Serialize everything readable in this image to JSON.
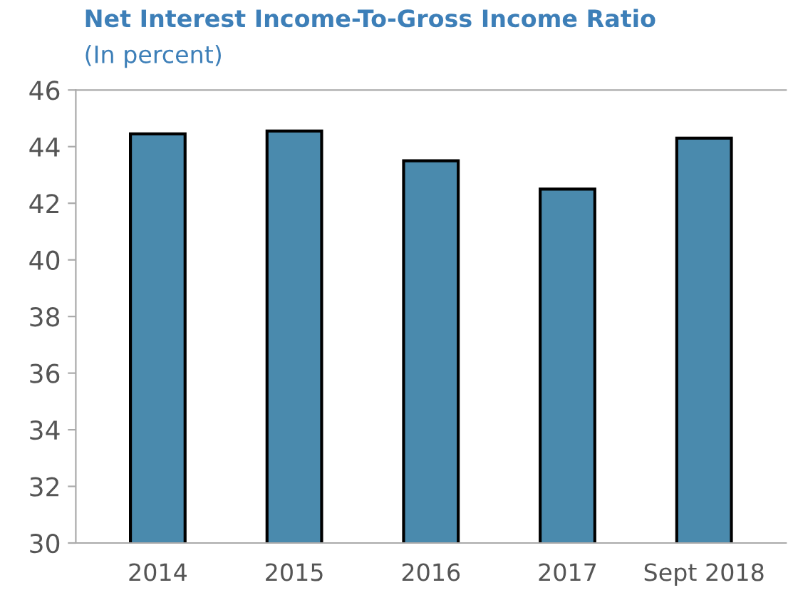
{
  "chart_data": {
    "type": "bar",
    "title": "Net Interest Income-To-Gross Income Ratio",
    "subtitle": "(In percent)",
    "categories": [
      "2014",
      "2015",
      "2016",
      "2017",
      "Sept 2018"
    ],
    "values": [
      44.45,
      44.55,
      43.5,
      42.5,
      44.3
    ],
    "color": "#4a8aad",
    "ylim": [
      30,
      46
    ],
    "yticks": [
      30,
      32,
      34,
      36,
      38,
      40,
      42,
      44,
      46
    ],
    "grid": false,
    "legend": false
  }
}
